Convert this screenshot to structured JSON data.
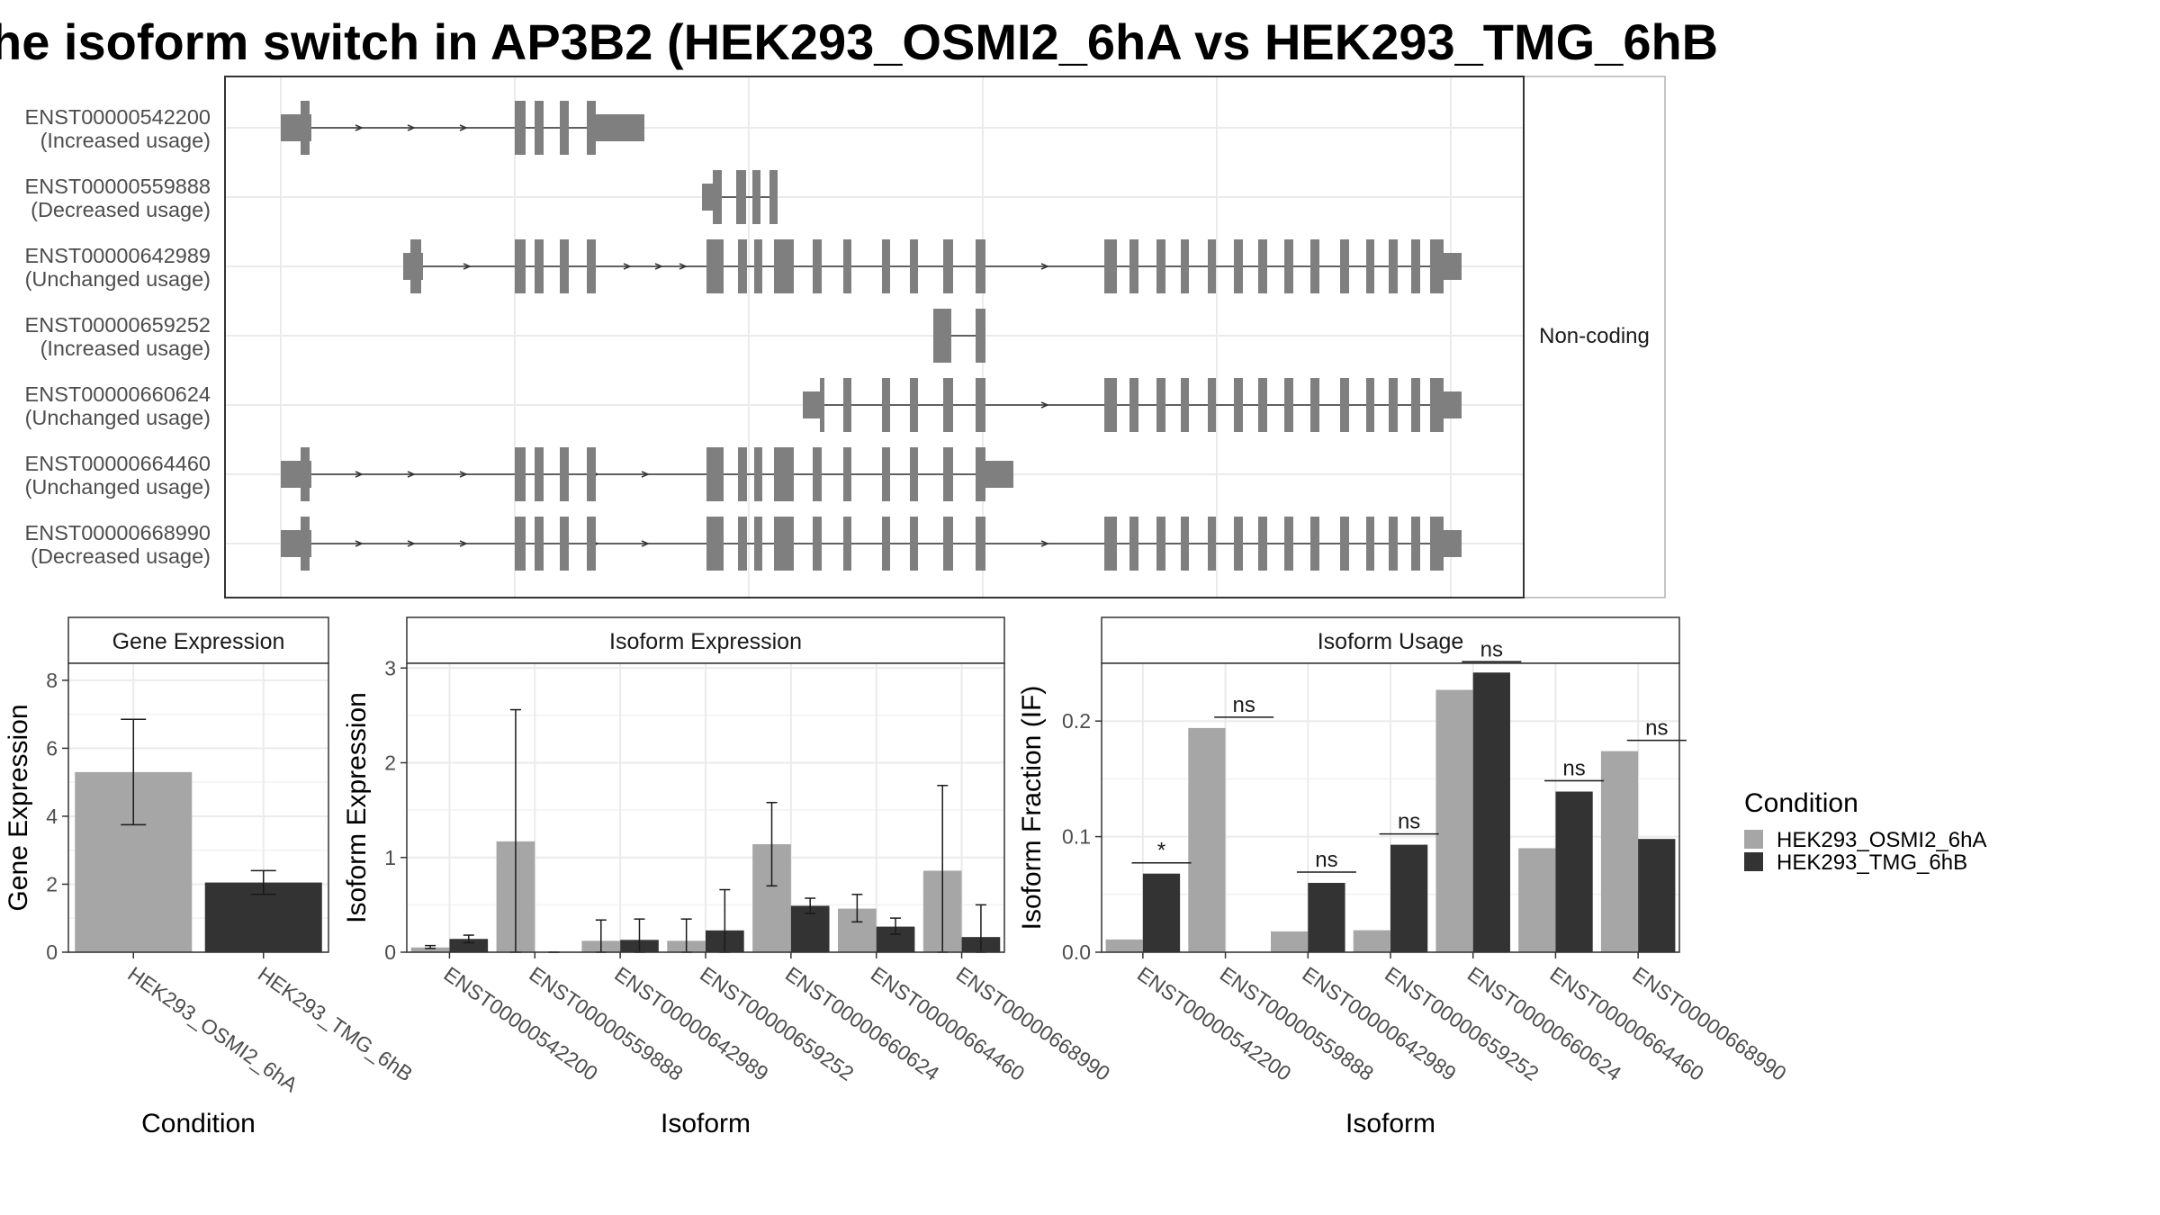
{
  "title": "he isoform switch in AP3B2 (HEK293_OSMI2_6hA vs HEK293_TMG_6hB",
  "colors": {
    "cond_a": "#a6a6a6",
    "cond_b": "#333333",
    "exon": "#7f7f7f",
    "grid": "#ebebeb",
    "panel_border": "#333333"
  },
  "transcripts": {
    "strip_label": "Non-coding",
    "rows": [
      {
        "id": "ENST00000542200",
        "usage": "(Increased usage)"
      },
      {
        "id": "ENST00000559888",
        "usage": "(Decreased usage)"
      },
      {
        "id": "ENST00000642989",
        "usage": "(Unchanged usage)"
      },
      {
        "id": "ENST00000659252",
        "usage": "(Increased usage)"
      },
      {
        "id": "ENST00000660624",
        "usage": "(Unchanged usage)"
      },
      {
        "id": "ENST00000664460",
        "usage": "(Unchanged usage)"
      },
      {
        "id": "ENST00000668990",
        "usage": "(Decreased usage)"
      }
    ]
  },
  "chart_data": [
    {
      "type": "bar",
      "title": "Gene Expression",
      "xlabel": "Condition",
      "ylabel": "Gene Expression",
      "ylim": [
        0,
        8.5
      ],
      "yticks": [
        "0",
        "2",
        "4",
        "6",
        "8"
      ],
      "categories": [
        "HEK293_OSMI2_6hA",
        "HEK293_TMG_6hB"
      ],
      "values": [
        5.3,
        2.05
      ],
      "error_low": [
        3.75,
        1.7
      ],
      "error_high": [
        6.85,
        2.4
      ]
    },
    {
      "type": "bar",
      "title": "Isoform Expression",
      "xlabel": "Isoform",
      "ylabel": "Isoform Expression",
      "ylim": [
        0,
        3.05
      ],
      "yticks": [
        "0",
        "1",
        "2",
        "3"
      ],
      "categories": [
        "ENST00000542200",
        "ENST00000559888",
        "ENST00000642989",
        "ENST00000659252",
        "ENST00000660624",
        "ENST00000664460",
        "ENST00000668990"
      ],
      "series": [
        {
          "name": "HEK293_OSMI2_6hA",
          "values": [
            0.05,
            1.17,
            0.12,
            0.12,
            1.14,
            0.46,
            0.86
          ],
          "error_low": [
            0.04,
            0.0,
            0.0,
            0.0,
            0.7,
            0.32,
            0.0
          ],
          "error_high": [
            0.07,
            2.56,
            0.34,
            0.35,
            1.58,
            0.61,
            1.76
          ]
        },
        {
          "name": "HEK293_TMG_6hB",
          "values": [
            0.14,
            0.0,
            0.13,
            0.23,
            0.49,
            0.27,
            0.16
          ],
          "error_low": [
            0.1,
            0.0,
            0.0,
            0.0,
            0.41,
            0.19,
            0.0
          ],
          "error_high": [
            0.18,
            0.0,
            0.35,
            0.66,
            0.57,
            0.36,
            0.5
          ]
        }
      ]
    },
    {
      "type": "bar",
      "title": "Isoform Usage",
      "xlabel": "Isoform",
      "ylabel": "Isoform Fraction (IF)",
      "ylim": [
        0,
        0.25
      ],
      "yticks": [
        "0.0",
        "0.1",
        "0.2"
      ],
      "categories": [
        "ENST00000542200",
        "ENST00000559888",
        "ENST00000642989",
        "ENST00000659252",
        "ENST00000660624",
        "ENST00000664460",
        "ENST00000668990"
      ],
      "series": [
        {
          "name": "HEK293_OSMI2_6hA",
          "values": [
            0.011,
            0.194,
            0.018,
            0.019,
            0.227,
            0.09,
            0.174
          ]
        },
        {
          "name": "HEK293_TMG_6hB",
          "values": [
            0.068,
            0.0,
            0.06,
            0.093,
            0.242,
            0.139,
            0.098
          ]
        }
      ],
      "significance": [
        "*",
        "ns",
        "ns",
        "ns",
        "ns",
        "ns",
        "ns"
      ]
    }
  ],
  "legend": {
    "title": "Condition",
    "items": [
      "HEK293_OSMI2_6hA",
      "HEK293_TMG_6hB"
    ]
  }
}
